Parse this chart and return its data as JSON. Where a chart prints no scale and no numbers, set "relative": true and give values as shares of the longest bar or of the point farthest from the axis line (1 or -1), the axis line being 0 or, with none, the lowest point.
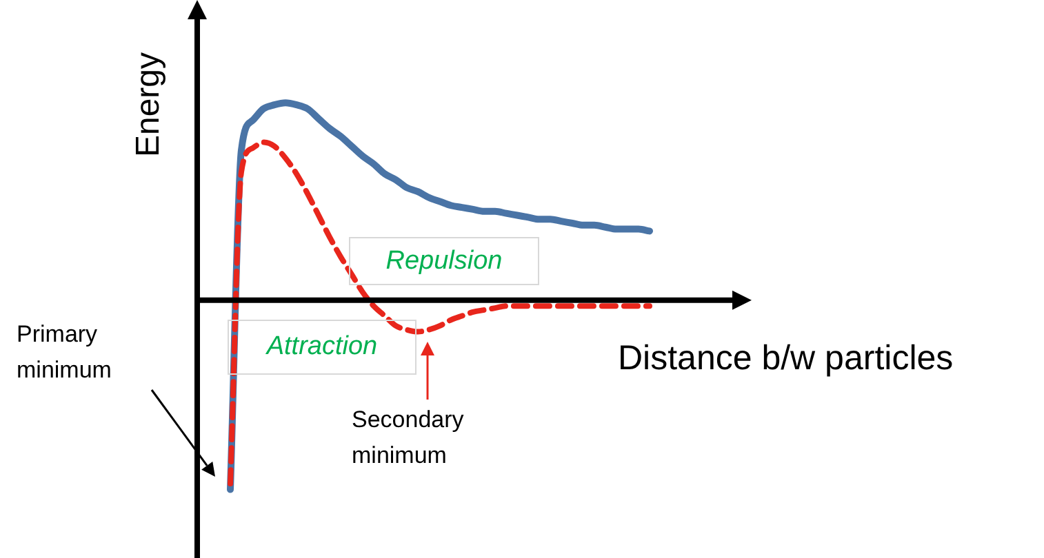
{
  "chart_data": {
    "type": "line",
    "relative": true,
    "xlabel": "Distance b/w particles",
    "ylabel": "Energy",
    "categories": [
      null,
      null,
      null,
      null,
      null,
      null,
      null,
      null,
      null,
      null,
      null,
      null,
      null,
      null,
      null,
      null,
      null,
      null,
      null,
      null,
      null,
      null,
      null,
      null,
      null,
      null,
      null,
      null,
      null,
      null,
      null,
      null,
      null,
      null,
      null,
      null,
      null,
      null,
      null,
      null,
      null,
      null,
      null,
      null,
      null,
      null,
      null,
      null,
      null,
      null,
      null
    ],
    "series": [
      {
        "color": "#4a74a6",
        "line_style": "solid",
        "values": [
          null,
          null,
          null,
          -0.96,
          0.76,
          0.91,
          0.97,
          0.99,
          1,
          0.99,
          0.97,
          0.92,
          0.87,
          0.83,
          0.78,
          0.73,
          0.69,
          0.64,
          0.61,
          0.57,
          0.55,
          0.52,
          0.5,
          0.48,
          0.47,
          0.46,
          0.45,
          0.45,
          0.44,
          0.43,
          0.42,
          0.41,
          0.41,
          0.4,
          0.39,
          0.38,
          0.38,
          0.37,
          0.36,
          0.36,
          0.36,
          0.35,
          null,
          null,
          null,
          null,
          null,
          null,
          null,
          null,
          null
        ]
      },
      {
        "color": "#e8261c",
        "line_style": "dashed",
        "values": [
          null,
          null,
          null,
          -0.93,
          0.65,
          0.77,
          0.8,
          0.78,
          0.72,
          0.64,
          0.54,
          0.43,
          0.32,
          0.22,
          0.13,
          0.04,
          -0.03,
          -0.08,
          -0.13,
          -0.15,
          -0.16,
          -0.15,
          -0.13,
          -0.1,
          -0.08,
          -0.06,
          -0.05,
          -0.04,
          -0.03,
          -0.03,
          -0.03,
          -0.03,
          -0.03,
          -0.03,
          -0.03,
          -0.03,
          -0.03,
          -0.03,
          -0.03,
          -0.03,
          -0.03,
          -0.03,
          null,
          null,
          null,
          null,
          null,
          null,
          null,
          null,
          null
        ]
      }
    ],
    "annotations": [
      "Repulsion",
      "Attraction",
      "Primary minimum",
      "Secondary minimum"
    ],
    "legend": false,
    "grid": false
  }
}
